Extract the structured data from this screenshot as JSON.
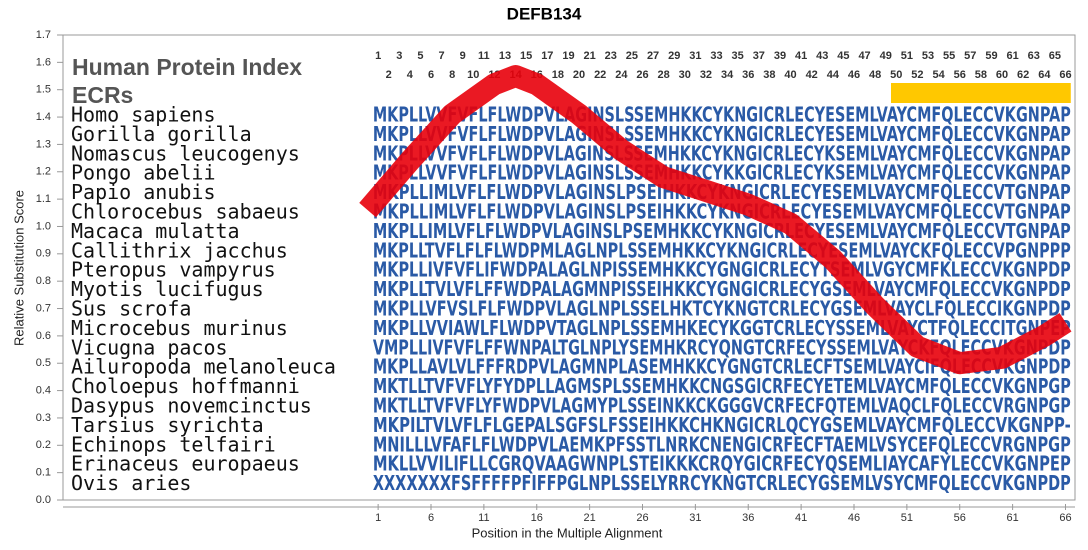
{
  "chart_data": {
    "type": "line",
    "title": "DEFB134",
    "xlabel": "Position in the Multiple Alignment",
    "ylabel": "Relative Substitution Score",
    "heading": "Human Protein Index",
    "ecr_label": "ECRs",
    "ecr_regions": [
      {
        "start": 50,
        "end": 66
      }
    ],
    "ecr_color": "#ffc800",
    "sequence_color": "#2a5aa6",
    "x": [
      0,
      4,
      8,
      12,
      14,
      16,
      20,
      24,
      28,
      32,
      36,
      40,
      44,
      48,
      52,
      56,
      60,
      64,
      66
    ],
    "values": [
      1.06,
      1.24,
      1.41,
      1.52,
      1.55,
      1.52,
      1.41,
      1.28,
      1.18,
      1.13,
      1.08,
      1.01,
      0.88,
      0.71,
      0.56,
      0.5,
      0.52,
      0.6,
      0.65
    ],
    "color": "#e8000b",
    "xlim": [
      -28.8,
      66.9
    ],
    "ylim": [
      0,
      1.7
    ],
    "xticks": [
      1,
      6,
      11,
      16,
      21,
      26,
      31,
      36,
      41,
      46,
      51,
      56,
      61,
      66
    ],
    "yticks": [
      {
        "value": 0,
        "label": "0.0"
      },
      0.1,
      0.2,
      0.3,
      0.4,
      0.5,
      0.6,
      0.7,
      0.8,
      0.9,
      {
        "value": 1,
        "label": "1.0"
      },
      1.1,
      1.2,
      1.3,
      1.4,
      1.5,
      1.6,
      1.7
    ],
    "grid": false,
    "positions": [
      1,
      2,
      3,
      4,
      5,
      6,
      7,
      8,
      9,
      10,
      11,
      12,
      13,
      14,
      15,
      16,
      17,
      18,
      19,
      20,
      21,
      22,
      23,
      24,
      25,
      26,
      27,
      28,
      29,
      30,
      31,
      32,
      33,
      34,
      35,
      36,
      37,
      38,
      39,
      40,
      41,
      42,
      43,
      44,
      45,
      46,
      47,
      48,
      49,
      50,
      51,
      52,
      53,
      54,
      55,
      56,
      57,
      58,
      59,
      60,
      61,
      62,
      63,
      64,
      65,
      66
    ],
    "alignment": [
      {
        "species": "Homo sapiens",
        "sequence": "MKPLLVVFVFLFLWDPVLAGINSLSSEMHKKCYKNGICRLECYESEMLVAYCMFQLECCVKGNPAP"
      },
      {
        "species": "Gorilla gorilla",
        "sequence": "MKPLLVVFVFLFLWDPVLAGINSLSSEMHKKCYKNGICRLECYESEMLVAYCMFQLECCVKGNPAP"
      },
      {
        "species": "Nomascus leucogenys",
        "sequence": "MKPLLVVFVFLFLWDPVLAGINSLSSEMHKKCYKNGICRLECYKSEMLVAYCMFQLECCVKGNPAP"
      },
      {
        "species": "Pongo abelii",
        "sequence": "MKPLLVVFVFLFLWDPVLAGINSLSSEMHKKCYKKGICRLECYKSEMLVAYCMFQLECCVKGNPAP"
      },
      {
        "species": "Papio anubis",
        "sequence": "MKPLLIMLVFLFLWDPVLAGINSLPSEIHKKCYKNGICRLECYESEMLVAYCMFQLECCVTGNPAP"
      },
      {
        "species": "Chlorocebus sabaeus",
        "sequence": "MKPLLIMLVFLFLWDPVLAGINSLPSEIHKKCYKNGICRLECYESEMLVAYCMFQLECCVTGNPAP"
      },
      {
        "species": "Macaca mulatta",
        "sequence": "MKPLLIMLVFLFLWDPVLAGINSLPSEMHKKCYKNGICRLECYESEMLVAYCMFQLECCVTGNPAP"
      },
      {
        "species": "Callithrix jacchus",
        "sequence": "MKPLLTVFLFLFLWDPMLAGLNPLSSEMHKKCYKNGICRLECYESEMLVAYCKFQLECCVPGNPPP"
      },
      {
        "species": "Pteropus vampyrus",
        "sequence": "MKPLLIVFVFLIFWDPALAGLNPISSEMHKKCYGNGICRLECYTSEMLVGYCMFKLECCVKGNPDP"
      },
      {
        "species": "Myotis lucifugus",
        "sequence": "MKPLLTVLVFLFFWDPALAGMNPISSEIHKKCYGNGICRLECYGSEMLVAYCMFQLECCVKGNPDP"
      },
      {
        "species": "Sus scrofa",
        "sequence": "MKPLLVFVSLFLFWDPVLAGLNPLSSELHKTCYKNGTCRLECYGSEMLVAYCLFQLECCIKGNPDP"
      },
      {
        "species": "Microcebus murinus",
        "sequence": "MKPLLVVIAWLFLWDPVTAGLNPLSSEMHKECYKGGTCRLECYSSEMLVAYCTFQLECCITGNPEP"
      },
      {
        "species": "Vicugna pacos",
        "sequence": "VMPLLIVFVFLFFWNPALTGLNPLYSEMHKRCYQNGTCRFECYSSEMLVAYCKFQLECCVKGNPDP"
      },
      {
        "species": "Ailuropoda melanoleuca",
        "sequence": "MKPLLAVLVLFFFRDPVLAGMNPLASEMHKKCYGNGTCRLECFTSEMLVAYCIFQLECCVKGNPDP"
      },
      {
        "species": "Choloepus hoffmanni",
        "sequence": "MKTLLTVFVFLYFYDPLLAGMSPLSSEMHKKCNGSGICRFECYETEMLVAYCMFQLECCVKGNPGP"
      },
      {
        "species": "Dasypus novemcinctus",
        "sequence": "MKTLLTVFVFLYFWDPVLAGMYPLSSEINKKCKGGGVCRFECFQTEMLVAQCLFQLECCVRGNPGP"
      },
      {
        "species": "Tarsius syrichta",
        "sequence": "MKPILTVLVFLFLGEPALSGFSLFSSEIHKKCHKNGICRLQCYGSEMLVAYCMFQLECCVKGNPP-"
      },
      {
        "species": "Echinops telfairi",
        "sequence": "MNILLLVFAFLFLWDPVLAEMKPFSSTLNRKCNENGICRFECFTAEMLVSYCEFQLECCVRGNPGP"
      },
      {
        "species": "Erinaceus europaeus",
        "sequence": "MKLLVVILIFLLCGRQVAAGWNPLSTEIKKKCRQYGICRFECYQSEMLIAYCAFYLECCVKGNPEP"
      },
      {
        "species": "Ovis aries",
        "sequence": "XXXXXXXFSFFFFPFIFFPGLNPLSSELYRRCYKNGTCRLECYGSEMLVSYCMFQLECCVKGNPDP"
      }
    ]
  }
}
